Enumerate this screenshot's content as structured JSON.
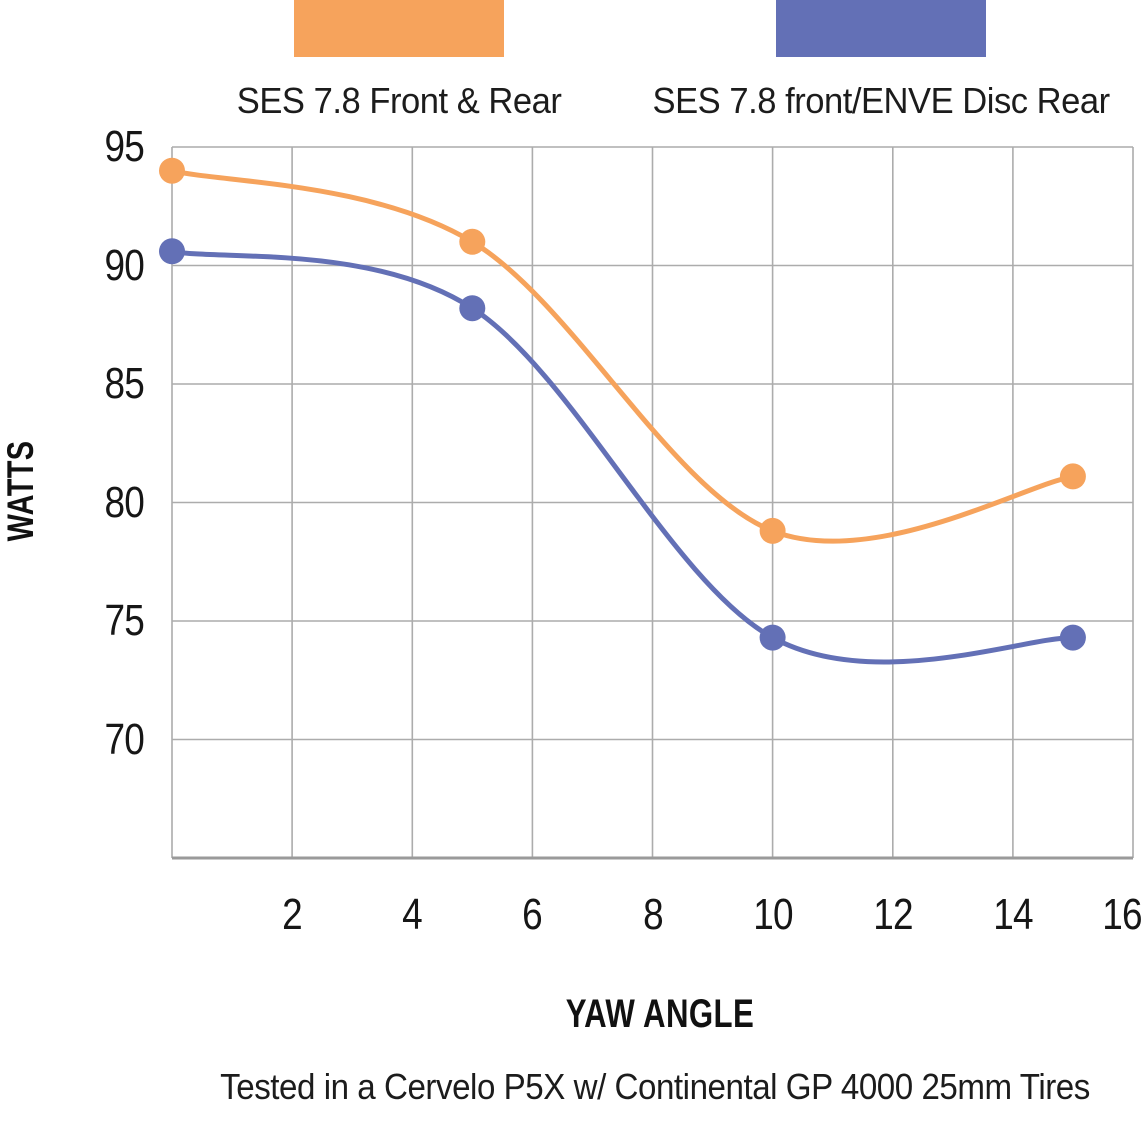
{
  "caption": "Tested in a Cervelo P5X w/ Continental GP 4000 25mm Tires",
  "colors": {
    "grid": "#ACACAC",
    "axis": "#9A9A9A",
    "text": "#1C1C1C",
    "background": "#FFFFFF",
    "series_orange": "#F6A35C",
    "series_blue": "#6370B6"
  },
  "chart_data": {
    "type": "line",
    "x": [
      0,
      5,
      10,
      15
    ],
    "series": [
      {
        "name": "SES 7.8 Front & Rear",
        "color": "#F6A35C",
        "values": [
          94,
          91,
          78.8,
          81.1
        ]
      },
      {
        "name": "SES 7.8 front/ENVE Disc Rear",
        "color": "#6370B6",
        "values": [
          90.6,
          88.2,
          74.3,
          74.3
        ]
      }
    ],
    "title": "",
    "xlabel": "YAW ANGLE",
    "ylabel": "WATTS",
    "xlim": [
      0,
      16
    ],
    "ylim": [
      65,
      95
    ],
    "xticks": [
      2,
      4,
      6,
      8,
      10,
      12,
      14,
      16
    ],
    "yticks": [
      70,
      75,
      80,
      85,
      90,
      95
    ],
    "grid": true,
    "legend_position": "top",
    "smooth": true,
    "marker": "circle"
  }
}
